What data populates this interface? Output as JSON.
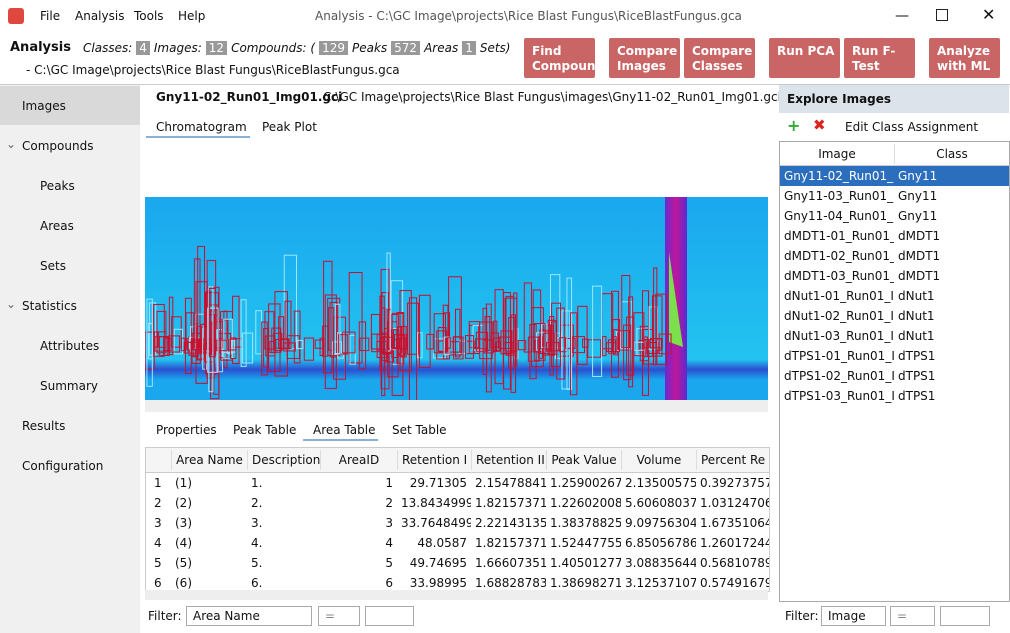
{
  "window": {
    "title": "Analysis - C:\\GC Image\\projects\\Rice Blast Fungus\\RiceBlastFungus.gca",
    "menu": [
      "File",
      "Analysis",
      "Tools",
      "Help"
    ]
  },
  "header": {
    "title": "Analysis",
    "summary": [
      {
        "text": "Classes:"
      },
      {
        "count": "4"
      },
      {
        "text": "Images:"
      },
      {
        "count": "12"
      },
      {
        "text": "Compounds: ("
      },
      {
        "count": "129"
      },
      {
        "text": "Peaks"
      },
      {
        "count": "572"
      },
      {
        "text": "Areas"
      },
      {
        "count": "1"
      },
      {
        "text": "Sets)"
      }
    ],
    "path": "- C:\\GC Image\\projects\\Rice Blast Fungus\\RiceBlastFungus.gca",
    "buttons": [
      "Find Compounds",
      "Compare Images",
      "Compare Classes",
      "Run PCA",
      "Run F-Test",
      "Analyze with ML"
    ]
  },
  "sidebar": {
    "selected": 0,
    "items": [
      {
        "label": "Images",
        "level": 0
      },
      {
        "label": "Compounds",
        "level": 0,
        "group": true
      },
      {
        "label": "Peaks",
        "level": 1
      },
      {
        "label": "Areas",
        "level": 1
      },
      {
        "label": "Sets",
        "level": 1
      },
      {
        "label": "Statistics",
        "level": 0,
        "group": true
      },
      {
        "label": "Attributes",
        "level": 1
      },
      {
        "label": "Summary",
        "level": 1
      },
      {
        "label": "Results",
        "level": 0
      },
      {
        "label": "Configuration",
        "level": 0
      }
    ]
  },
  "image": {
    "name": "Gny11-02_Run01_Img01.gci",
    "path": "C:\\GC Image\\projects\\Rice Blast Fungus\\images\\Gny11-02_Run01_Img01.gci",
    "tabs": [
      "Chromatogram",
      "Peak Plot"
    ],
    "active_tab": 0
  },
  "table": {
    "tabs": [
      "Properties",
      "Peak Table",
      "Area Table",
      "Set Table"
    ],
    "active_tab": 2,
    "columns": [
      "Area Name",
      "Description",
      "AreaID",
      "Retention I",
      "Retention II",
      "Peak Value",
      "Volume",
      "Percent Re"
    ],
    "rows": [
      [
        "1",
        "(1)",
        "1.",
        "1",
        "29.71305",
        "2.15478841...",
        "1.2590026​7...",
        "2.13500575...",
        "0.39273757"
      ],
      [
        "2",
        "(2)",
        "2.",
        "2",
        "13.8434999...",
        "1.82157371...",
        "1.22602008...",
        "5.60608037...",
        "1.03124706"
      ],
      [
        "3",
        "(3)",
        "3.",
        "3",
        "33.7648499...",
        "2.22143135...",
        "1.38378825...",
        "9.09756304...",
        "1.67351064"
      ],
      [
        "4",
        "(4)",
        "4.",
        "4",
        "48.0587",
        "1.82157371...",
        "1.52447755...",
        "6.85056786...",
        "1.26017244"
      ],
      [
        "5",
        "(5)",
        "5.",
        "5",
        "49.74695",
        "1.66607351...",
        "1.40501277...",
        "3.08835644...",
        "0.56810789"
      ],
      [
        "6",
        "(6)",
        "6.",
        "6",
        "33.98995",
        "1.68828783...",
        "1.38698271...",
        "3.12537107...",
        "0.57491679"
      ]
    ],
    "filter": {
      "label": "Filter:",
      "field": "Area Name",
      "op": "="
    }
  },
  "explore": {
    "title": "Explore Images",
    "toolbar": "Edit Class Assignment",
    "columns": [
      "Image",
      "Class"
    ],
    "selected": 0,
    "rows": [
      [
        "Gny11-02_Run01_I...",
        "Gny11"
      ],
      [
        "Gny11-03_Run01_I...",
        "Gny11"
      ],
      [
        "Gny11-04_Run01_I...",
        "Gny11"
      ],
      [
        "dMDT1-01_Run01_...",
        "dMDT1"
      ],
      [
        "dMDT1-02_Run01_...",
        "dMDT1"
      ],
      [
        "dMDT1-03_Run01_...",
        "dMDT1"
      ],
      [
        "dNut1-01_Run01_I...",
        "dNut1"
      ],
      [
        "dNut1-02_Run01_I...",
        "dNut1"
      ],
      [
        "dNut1-03_Run01_I...",
        "dNut1"
      ],
      [
        "dTPS1-01_Run01_I...",
        "dTPS1"
      ],
      [
        "dTPS1-02_Run01_I...",
        "dTPS1"
      ],
      [
        "dTPS1-03_Run01_I...",
        "dTPS1"
      ]
    ],
    "filter": {
      "label": "Filter:",
      "field": "Image",
      "op": "="
    }
  }
}
